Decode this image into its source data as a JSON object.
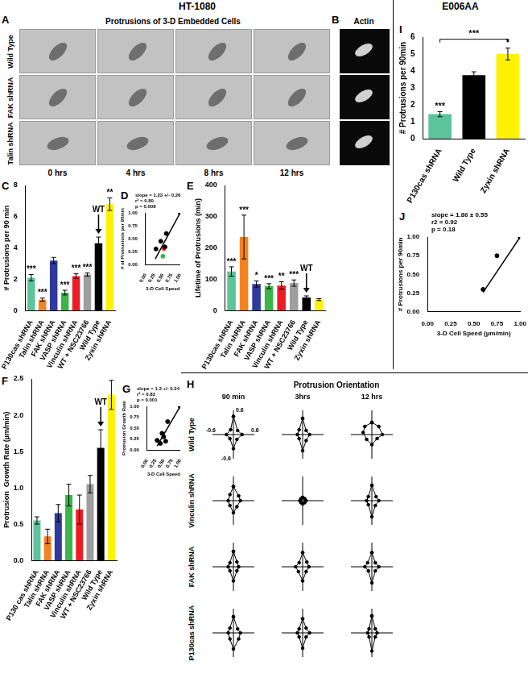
{
  "figure": {
    "left_header": "HT-1080",
    "right_header": "E006AA",
    "panel_a": {
      "panel": "A",
      "title": "Protrusions of 3-D Embedded Cells",
      "rows": [
        "Wild Type",
        "FAK shRNA",
        "Talin shRNA"
      ],
      "columns": [
        "0 hrs",
        "4 hrs",
        "8 hrs",
        "12 hrs"
      ]
    },
    "panel_b": {
      "panel": "B",
      "title": "Actin"
    }
  },
  "chart_data": [
    {
      "panel": "C",
      "type": "bar",
      "y_label": "# Protrusions per 90 min",
      "categories": [
        "P130cas shRNA",
        "Talin shRNA",
        "FAK shRNA",
        "VASP shRNA",
        "Vinculin shRNA",
        "WT + NSC23766",
        "Wild Type",
        "Zyxin shRNA"
      ],
      "values": [
        2.1,
        0.7,
        3.2,
        1.15,
        2.2,
        2.3,
        4.3,
        6.8
      ],
      "errors": [
        0.2,
        0.1,
        0.2,
        0.15,
        0.15,
        0.1,
        0.4,
        0.4
      ],
      "significance": [
        "***",
        "***",
        null,
        "***",
        "***",
        "***",
        null,
        "**"
      ],
      "colors": [
        "#5cc39a",
        "#f58220",
        "#2e3a9e",
        "#39b54a",
        "#ed1c24",
        "#9e9e9e",
        "#000000",
        "#fff200"
      ],
      "annotations": [
        {
          "category": "Wild Type",
          "text": "WT"
        }
      ],
      "ylim": [
        0,
        8
      ],
      "yticks": [
        0,
        2,
        4,
        6,
        8
      ],
      "grid": false
    },
    {
      "panel": "D",
      "type": "scatter",
      "x_label": "3-D Cell Speed",
      "y_label": "# of Protrusions per 90min",
      "x": [
        0.3,
        0.44,
        0.5,
        0.53,
        0.56,
        0.6,
        1.0
      ],
      "values": [
        0.3,
        0.45,
        0.16,
        0.31,
        0.34,
        0.6,
        1.0
      ],
      "colors": [
        "#000000",
        "#000000",
        "#39b54a",
        "#ed1c24",
        "#000000",
        "#000000",
        "#000000"
      ],
      "fit": {
        "x": [
          0.28,
          1.0
        ],
        "values": [
          0.11,
          1.0
        ]
      },
      "annotations": [
        "slope = 1.23 +/- 0.26",
        "r² = 0.80",
        "p = 0.008"
      ],
      "xlim": [
        0,
        1
      ],
      "xticks": [
        {
          "value": 0,
          "label": "0.00"
        },
        {
          "value": 0.25,
          "label": "0.25"
        },
        {
          "value": 0.5,
          "label": "0.50"
        },
        {
          "value": 0.75,
          "label": "0.75"
        },
        {
          "value": 1,
          "label": "1.00"
        }
      ],
      "ylim": [
        0,
        1
      ],
      "yticks": [
        {
          "value": 0,
          "label": "0.00"
        },
        {
          "value": 0.25,
          "label": "0.25"
        },
        {
          "value": 0.5,
          "label": "0.50"
        },
        {
          "value": 0.75,
          "label": "0.75"
        },
        {
          "value": 1,
          "label": "1.00"
        }
      ],
      "grid": false
    },
    {
      "panel": "E",
      "type": "bar",
      "y_label": "Lifetime of Protrusions (min)",
      "categories": [
        "P130cas shRNA",
        "Talin shRNA",
        "FAK shRNA",
        "VASP shRNA",
        "Vinculin shRNA",
        "WT + NSC23766",
        "Wild Type",
        "Zyxin shRNA"
      ],
      "values": [
        125,
        235,
        85,
        78,
        80,
        88,
        42,
        35
      ],
      "errors": [
        15,
        70,
        10,
        8,
        12,
        10,
        5,
        3
      ],
      "significance": [
        "***",
        "***",
        "*",
        "***",
        "**",
        "***",
        null,
        null
      ],
      "colors": [
        "#5cc39a",
        "#f58220",
        "#2e3a9e",
        "#39b54a",
        "#ed1c24",
        "#9e9e9e",
        "#000000",
        "#fff200"
      ],
      "annotations": [
        {
          "category": "Wild Type",
          "text": "WT"
        }
      ],
      "ylim": [
        0,
        400
      ],
      "yticks": [
        0,
        100,
        200,
        300,
        400
      ],
      "grid": false
    },
    {
      "panel": "F",
      "type": "bar",
      "y_label": "Protrusion  Growth Rate (µm/min)",
      "categories": [
        "P130 cas shRNA",
        "Talin shRNA",
        "FAK shRNA",
        "VASP shRNA",
        "Vinculin shRNA",
        "WT + NSC23766",
        "Wild Type",
        "Zyxin shRNA"
      ],
      "values": [
        0.55,
        0.33,
        0.65,
        0.9,
        0.7,
        1.05,
        1.55,
        2.28
      ],
      "errors": [
        0.05,
        0.1,
        0.12,
        0.15,
        0.2,
        0.12,
        0.25,
        0.2
      ],
      "colors": [
        "#5cc39a",
        "#f58220",
        "#2e3a9e",
        "#39b54a",
        "#ed1c24",
        "#9e9e9e",
        "#000000",
        "#fff200"
      ],
      "annotations": [
        {
          "category": "Wild Type",
          "text": "WT"
        }
      ],
      "ylim": [
        0,
        2.5
      ],
      "yticks": [
        {
          "value": 0,
          "label": "0.0"
        },
        0.5,
        {
          "value": 1,
          "label": "1.0"
        },
        1.5,
        {
          "value": 2,
          "label": "2.0"
        },
        2.5
      ],
      "grid": false
    },
    {
      "panel": "G",
      "type": "scatter",
      "x_label": "3-D Cell Speed",
      "y_label": "Protrusion Growth Rate",
      "x": [
        0.3,
        0.4,
        0.45,
        0.5,
        0.56,
        0.62,
        1.0
      ],
      "values": [
        0.22,
        0.15,
        0.38,
        0.3,
        0.2,
        0.65,
        1.0
      ],
      "colors": [
        "#000000",
        "#000000",
        "#000000",
        "#000000",
        "#000000",
        "#000000",
        "#000000"
      ],
      "fit": {
        "x": [
          0.3,
          1.0
        ],
        "values": [
          0.09,
          1.0
        ]
      },
      "annotations": [
        "slope = 1.3 +/- 0.24",
        "r² = 0.83",
        "p = 0.001"
      ],
      "xlim": [
        0,
        1
      ],
      "xticks": [
        {
          "value": 0,
          "label": "0.00"
        },
        {
          "value": 0.25,
          "label": "0.25"
        },
        {
          "value": 0.5,
          "label": "0.50"
        },
        {
          "value": 0.75,
          "label": "0.75"
        },
        {
          "value": 1,
          "label": "1.00"
        }
      ],
      "ylim": [
        0,
        1
      ],
      "yticks": [
        {
          "value": 0,
          "label": "0.00"
        },
        {
          "value": 0.25,
          "label": "0.25"
        },
        {
          "value": 0.5,
          "label": "0.50"
        },
        {
          "value": 0.75,
          "label": "0.75"
        },
        {
          "value": 1,
          "label": "1.00"
        }
      ],
      "grid": false
    },
    {
      "panel": "H",
      "type": "orientation",
      "title": "Protrusion Orientation",
      "columns": [
        "90 min",
        "3hrs",
        "12 hrs"
      ],
      "rows": [
        "Wild Type",
        "Vinculin shRNA",
        "FAK shRNA",
        "P130cas shRNA"
      ],
      "xlim": [
        -0.6,
        0.6
      ],
      "xticks": [
        -0.6,
        0.6
      ],
      "ylim": [
        -0.6,
        0.6
      ],
      "yticks": [
        -0.6,
        0.6
      ],
      "plots": [
        [
          {
            "x": [
              0,
              0.12,
              0.25,
              0.1,
              0,
              -0.1,
              -0.2,
              -0.08,
              0
            ],
            "values": [
              0.45,
              0.1,
              0,
              -0.12,
              -0.35,
              -0.1,
              0,
              0.12,
              0.45
            ]
          },
          {
            "x": [
              0,
              0.1,
              0.2,
              0.1,
              0,
              -0.1,
              -0.15,
              -0.1,
              0
            ],
            "values": [
              0.4,
              0.1,
              0,
              -0.15,
              -0.4,
              -0.1,
              0,
              0.12,
              0.4
            ],
            "tick_labels": false
          },
          {
            "x": [
              0,
              0.2,
              0.3,
              0.15,
              0,
              -0.15,
              -0.25,
              -0.2,
              0
            ],
            "values": [
              0.3,
              0.2,
              0,
              -0.1,
              -0.25,
              -0.12,
              0.05,
              0.2,
              0.3
            ],
            "tick_labels": false
          }
        ],
        [
          {
            "x": [
              0,
              0.15,
              0.2,
              0.1,
              0,
              -0.1,
              -0.15,
              -0.1,
              0
            ],
            "values": [
              0.35,
              0.12,
              0,
              -0.15,
              -0.3,
              -0.12,
              0,
              0.15,
              0.35
            ],
            "tick_labels": false
          },
          {
            "x": [
              0,
              0.06,
              0.1,
              0.06,
              0,
              -0.05,
              -0.08,
              -0.05,
              0
            ],
            "values": [
              0.08,
              0.05,
              0,
              -0.05,
              -0.08,
              -0.05,
              0,
              0.05,
              0.08
            ],
            "tick_labels": false
          },
          {
            "x": [
              0,
              0.12,
              0.2,
              0.1,
              0,
              -0.1,
              -0.15,
              -0.1,
              0
            ],
            "values": [
              0.38,
              0.1,
              0,
              -0.12,
              -0.4,
              -0.1,
              0,
              0.1,
              0.38
            ],
            "tick_labels": false
          }
        ],
        [
          {
            "x": [
              0,
              0.1,
              0.15,
              0.1,
              0,
              -0.1,
              -0.15,
              -0.1,
              0
            ],
            "values": [
              0.38,
              0.12,
              0,
              -0.1,
              -0.35,
              -0.1,
              0,
              0.1,
              0.38
            ],
            "tick_labels": false
          },
          {
            "x": [
              0,
              0.12,
              0.18,
              0.1,
              0,
              -0.12,
              -0.2,
              -0.1,
              0
            ],
            "values": [
              0.35,
              0.12,
              0,
              -0.12,
              -0.35,
              -0.12,
              0,
              0.1,
              0.35
            ],
            "tick_labels": false
          },
          {
            "x": [
              0,
              0.1,
              0.2,
              0.1,
              0,
              -0.1,
              -0.2,
              -0.12,
              0
            ],
            "values": [
              0.35,
              0.1,
              0,
              -0.1,
              -0.4,
              -0.1,
              0,
              0.1,
              0.35
            ],
            "tick_labels": false
          }
        ],
        [
          {
            "x": [
              0,
              0.12,
              0.2,
              0.15,
              0,
              -0.1,
              -0.15,
              -0.1,
              0
            ],
            "values": [
              0.4,
              0.1,
              0,
              -0.15,
              -0.4,
              -0.15,
              0,
              0.12,
              0.4
            ],
            "tick_labels": false
          },
          {
            "x": [
              0,
              0.1,
              0.2,
              0.1,
              0,
              -0.1,
              -0.15,
              -0.1,
              0
            ],
            "values": [
              0.35,
              0.12,
              0,
              -0.1,
              -0.38,
              -0.1,
              0,
              0.1,
              0.35
            ],
            "tick_labels": false
          },
          {
            "x": [
              0,
              0.1,
              0.15,
              0.1,
              0,
              -0.08,
              -0.12,
              -0.08,
              0
            ],
            "values": [
              0.42,
              0.1,
              0,
              -0.1,
              -0.45,
              -0.1,
              0,
              0.1,
              0.42
            ],
            "tick_labels": false
          }
        ]
      ]
    },
    {
      "panel": "I",
      "type": "bar",
      "y_label": "# Protrusions per 90min",
      "categories": [
        "P130cas shRNA",
        "Wild Type",
        "Zyxin shRNA"
      ],
      "values": [
        1.45,
        3.75,
        5.0
      ],
      "errors": [
        0.15,
        0.2,
        0.35
      ],
      "significance": [
        "***",
        null,
        "*"
      ],
      "bracket": {
        "from": "P130cas shRNA",
        "to": "Zyxin shRNA",
        "text": "***"
      },
      "colors": [
        "#5cc39a",
        "#000000",
        "#fff200"
      ],
      "ylim": [
        0,
        6
      ],
      "yticks": [
        0,
        1,
        2,
        3,
        4,
        5,
        6
      ],
      "grid": false
    },
    {
      "panel": "J",
      "type": "scatter",
      "x_label": "3-D Cell Speed (µm/min)",
      "y_label": "# Protrusions per 90min",
      "x": [
        0.6,
        0.75,
        1.0
      ],
      "values": [
        0.3,
        0.75,
        1.0
      ],
      "colors": [
        "#000000",
        "#000000",
        "#000000"
      ],
      "fit": {
        "x": [
          0.6,
          1.0
        ],
        "values": [
          0.26,
          1.0
        ]
      },
      "annotations": [
        "slope = 1.86 ± 0.55",
        "r2 = 0.92",
        "p = 0.18"
      ],
      "xlim": [
        0,
        1
      ],
      "xticks": [
        {
          "value": 0,
          "label": "0.00"
        },
        {
          "value": 0.25,
          "label": "0.25"
        },
        {
          "value": 0.5,
          "label": "0.50"
        },
        {
          "value": 0.75,
          "label": "0.75"
        },
        {
          "value": 1,
          "label": "1.00"
        }
      ],
      "ylim": [
        0,
        1
      ],
      "yticks": [
        {
          "value": 0,
          "label": "0.00"
        },
        {
          "value": 0.25,
          "label": "0.25"
        },
        {
          "value": 0.5,
          "label": "0.50"
        },
        {
          "value": 0.75,
          "label": "0.75"
        },
        {
          "value": 1,
          "label": "1.00"
        }
      ],
      "grid": false
    }
  ]
}
